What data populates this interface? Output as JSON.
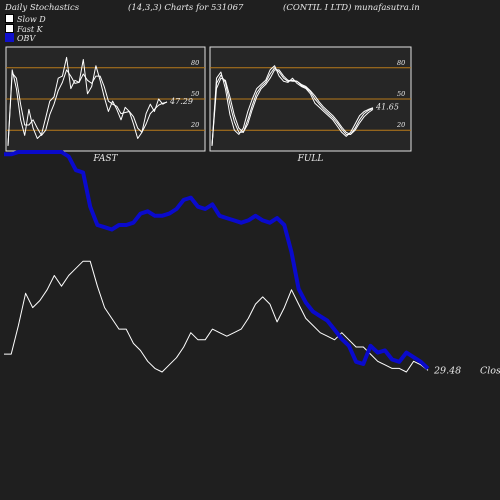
{
  "header": {
    "left": "Daily Stochastics",
    "mid": "(14,3,3) Charts for 531067",
    "right": "(CONTIL I LTD) munafasutra.in"
  },
  "legend": [
    {
      "label": "Slow  D",
      "color": "#ffffff",
      "border": "#000000"
    },
    {
      "label": "Fast K",
      "color": "#ffffff",
      "border": "#000000"
    },
    {
      "label": "OBV",
      "color": "#1010cc",
      "border": "#1010cc"
    }
  ],
  "colors": {
    "level_line": "#b87a1a",
    "osc_line": "#ffffff",
    "obv_line": "#0a0acc",
    "price_line": "#ffffff",
    "panel_bg": "#262626"
  },
  "chart_data": [
    {
      "type": "line",
      "panel": "FAST",
      "title": "FAST",
      "ylim": [
        0,
        100
      ],
      "levels": [
        20,
        50,
        80
      ],
      "tick_labels": [
        "80",
        "50",
        "20"
      ],
      "last_value_label": "47.29",
      "series": [
        {
          "values": [
            5,
            78,
            60,
            30,
            15,
            40,
            22,
            12,
            16,
            32,
            48,
            52,
            70,
            72,
            90,
            60,
            68,
            66,
            88,
            55,
            62,
            82,
            68,
            52,
            38,
            48,
            40,
            30,
            42,
            38,
            26,
            12,
            18,
            36,
            45,
            38,
            50,
            45,
            47.29
          ]
        },
        {
          "values": [
            5,
            75,
            70,
            45,
            25,
            25,
            30,
            22,
            15,
            20,
            35,
            45,
            58,
            66,
            78,
            72,
            65,
            66,
            74,
            68,
            65,
            72,
            72,
            62,
            48,
            45,
            43,
            36,
            37,
            38,
            33,
            22,
            18,
            26,
            36,
            40,
            44,
            46,
            47
          ]
        }
      ]
    },
    {
      "type": "line",
      "panel": "FULL",
      "title": "FULL",
      "ylim": [
        0,
        100
      ],
      "levels": [
        20,
        50,
        80
      ],
      "tick_labels": [
        "80",
        "50",
        "20"
      ],
      "last_value_label": "41.65",
      "series": [
        {
          "values": [
            5,
            70,
            76,
            60,
            35,
            20,
            16,
            22,
            38,
            50,
            60,
            64,
            68,
            78,
            82,
            72,
            67,
            66,
            70,
            65,
            62,
            60,
            55,
            46,
            42,
            38,
            34,
            30,
            24,
            18,
            14,
            18,
            26,
            34,
            38,
            40,
            41.65
          ]
        },
        {
          "values": [
            5,
            65,
            73,
            66,
            45,
            28,
            18,
            18,
            30,
            44,
            56,
            62,
            66,
            74,
            80,
            76,
            70,
            67,
            68,
            67,
            63,
            61,
            57,
            50,
            45,
            40,
            36,
            32,
            27,
            21,
            16,
            16,
            22,
            30,
            36,
            39,
            41
          ]
        },
        {
          "values": [
            5,
            60,
            70,
            68,
            52,
            34,
            22,
            18,
            26,
            40,
            52,
            60,
            64,
            70,
            78,
            78,
            72,
            68,
            67,
            67,
            64,
            62,
            58,
            53,
            47,
            42,
            38,
            34,
            29,
            23,
            18,
            16,
            20,
            27,
            33,
            37,
            40
          ]
        }
      ]
    },
    {
      "type": "line",
      "panel": "price-obv",
      "last_value_label": "29.48",
      "price_label": "Close",
      "series": [
        {
          "name": "OBV",
          "values": [
            -1,
            -1,
            0,
            0,
            0,
            0,
            0,
            0,
            0,
            -2,
            -8,
            -9,
            -24,
            -32,
            -33,
            -34,
            -32,
            -32,
            -31,
            -27,
            -26,
            -28,
            -28,
            -27,
            -25,
            -21,
            -20,
            -24,
            -25,
            -23,
            -28,
            -29,
            -30,
            -31,
            -30,
            -28,
            -30,
            -31,
            -29,
            -32,
            -44,
            -60,
            -66,
            -70,
            -72,
            -74,
            -78,
            -82,
            -85,
            -92,
            -93,
            -85,
            -88,
            -87,
            -91,
            -92,
            -88,
            -90,
            -92,
            -95
          ]
        },
        {
          "name": "Close",
          "values": [
            34,
            34,
            42,
            51,
            47,
            49,
            52,
            56,
            53,
            56,
            58,
            60,
            60,
            53,
            47,
            44,
            41,
            41,
            37,
            35,
            32,
            30,
            29,
            31,
            33,
            36,
            40,
            38,
            38,
            41,
            40,
            39,
            40,
            41,
            44,
            48,
            50,
            48,
            43,
            47,
            52,
            48,
            44,
            42,
            40,
            39,
            38,
            40,
            38,
            36,
            36,
            34,
            32,
            31,
            30,
            30,
            29,
            32,
            31,
            29.48
          ]
        }
      ]
    }
  ]
}
